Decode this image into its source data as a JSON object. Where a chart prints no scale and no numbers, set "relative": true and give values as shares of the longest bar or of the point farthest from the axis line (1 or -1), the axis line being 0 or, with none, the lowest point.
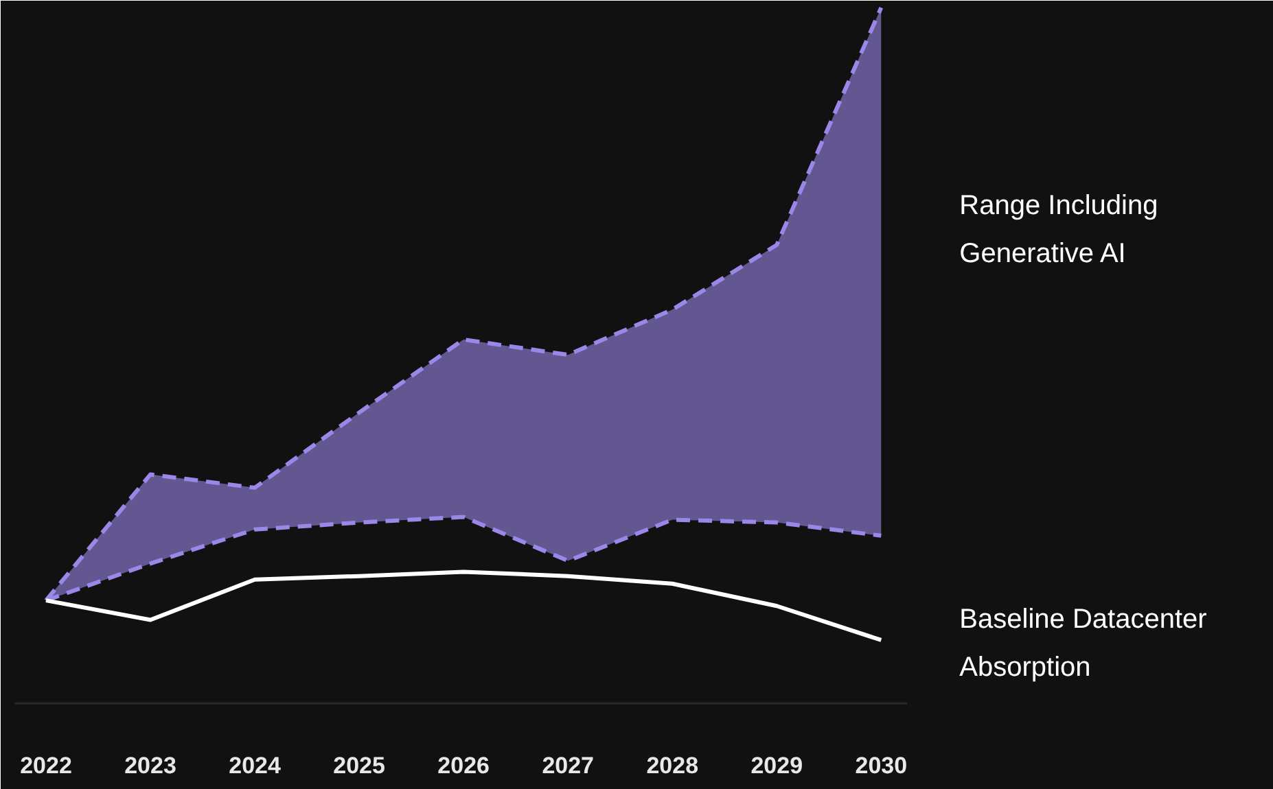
{
  "chart_data": {
    "type": "line",
    "relative": true,
    "categories": [
      "2022",
      "2023",
      "2024",
      "2025",
      "2026",
      "2027",
      "2028",
      "2029",
      "2030"
    ],
    "series": [
      {
        "name": "Range Including Generative AI",
        "line_style": "dashed",
        "color": "#9b87e8",
        "values": [
          0.148,
          0.329,
          0.31,
          0.418,
          0.523,
          0.501,
          0.566,
          0.659,
          1.0
        ],
        "lower": [
          0.148,
          0.201,
          0.25,
          0.26,
          0.268,
          0.205,
          0.264,
          0.26,
          0.241
        ],
        "upper": [
          0.148,
          0.329,
          0.31,
          0.418,
          0.523,
          0.501,
          0.566,
          0.659,
          1.0
        ]
      },
      {
        "line_style": "dashed",
        "color": "#9b87e8",
        "values": [
          0.148,
          0.201,
          0.25,
          0.26,
          0.268,
          0.205,
          0.264,
          0.26,
          0.241
        ]
      },
      {
        "name": "Baseline Datacenter Absorption",
        "line_style": "solid",
        "color": "#ffffff",
        "values": [
          0.148,
          0.12,
          0.178,
          0.183,
          0.189,
          0.183,
          0.172,
          0.14,
          0.091
        ]
      }
    ],
    "grid": false
  }
}
